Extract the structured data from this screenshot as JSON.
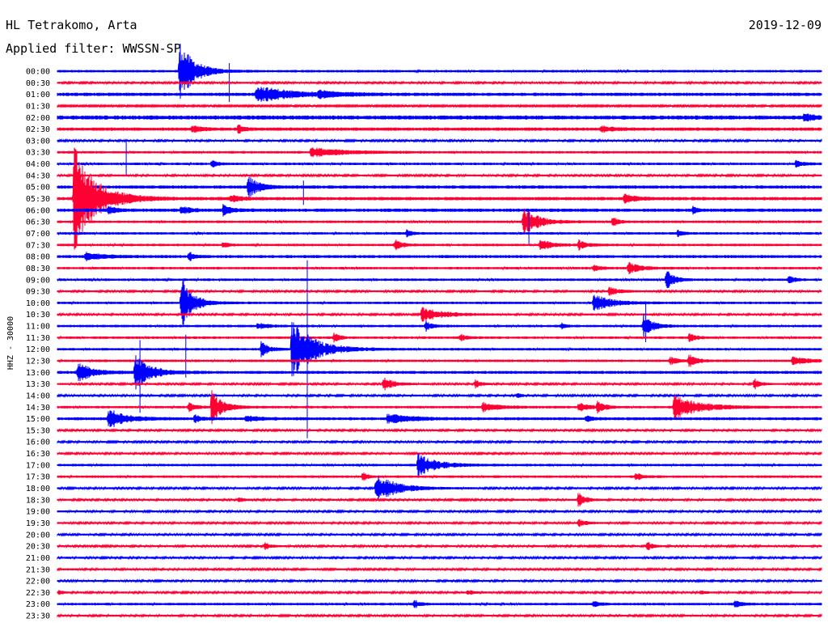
{
  "header": {
    "station": "HL Tetrakomo, Arta",
    "date": "2019-12-09",
    "filter": "Applied filter: WWSSN-SP"
  },
  "colors": {
    "even_trace": "#0000ff",
    "odd_trace": "#ff0033",
    "background": "#ffffff",
    "text": "#000000"
  },
  "chart_data": {
    "type": "line",
    "title": "HL Tetrakomo, Arta",
    "ylabel": "HHZ - 30000",
    "tick_labels": [
      "00:00",
      "00:30",
      "01:00",
      "01:30",
      "02:00",
      "02:30",
      "03:00",
      "03:30",
      "04:00",
      "04:30",
      "05:00",
      "05:30",
      "06:00",
      "06:30",
      "07:00",
      "07:30",
      "08:00",
      "08:30",
      "09:00",
      "09:30",
      "10:00",
      "10:30",
      "11:00",
      "11:30",
      "12:00",
      "12:30",
      "13:00",
      "13:30",
      "14:00",
      "14:30",
      "15:00",
      "15:30",
      "16:00",
      "16:30",
      "17:00",
      "17:30",
      "18:00",
      "18:30",
      "19:00",
      "19:30",
      "20:00",
      "20:30",
      "21:00",
      "21:30",
      "22:00",
      "22:30",
      "23:00",
      "23:30"
    ],
    "noise_levels": [
      1.5,
      1.2,
      2,
      1,
      2.5,
      2,
      1.2,
      1.5,
      1.5,
      1.2,
      2,
      2,
      2,
      1.5,
      1.5,
      1.5,
      1.8,
      1.5,
      1.5,
      1.2,
      1.5,
      1.2,
      1.5,
      1.5,
      1.5,
      1.5,
      1.8,
      1.2,
      1.2,
      1.5,
      1.8,
      1.2,
      1.2,
      1.2,
      1.5,
      1.5,
      1.2,
      1.2,
      1.2,
      1.2,
      1.2,
      1.2,
      1.2,
      1.2,
      1.2,
      1.2,
      1.5,
      1.2
    ],
    "events": [
      {
        "row": 0,
        "x0": 0.158,
        "amp": 42,
        "dur": 0.04
      },
      {
        "row": 2,
        "x0": 0.258,
        "amp": 11,
        "dur": 0.09
      },
      {
        "row": 2,
        "x0": 0.34,
        "amp": 4,
        "dur": 0.06
      },
      {
        "row": 4,
        "x0": 0.975,
        "amp": 6,
        "dur": 0.025
      },
      {
        "row": 5,
        "x0": 0.175,
        "amp": 6,
        "dur": 0.02
      },
      {
        "row": 5,
        "x0": 0.235,
        "amp": 7,
        "dur": 0.015
      },
      {
        "row": 5,
        "x0": 0.71,
        "amp": 4,
        "dur": 0.03
      },
      {
        "row": 7,
        "x0": 0.33,
        "amp": 6,
        "dur": 0.09
      },
      {
        "row": 8,
        "x0": 0.2,
        "amp": 6,
        "dur": 0.015
      },
      {
        "row": 8,
        "x0": 0.965,
        "amp": 6,
        "dur": 0.02
      },
      {
        "row": 10,
        "x0": 0.248,
        "amp": 15,
        "dur": 0.03
      },
      {
        "row": 11,
        "x0": 0.02,
        "amp": 70,
        "dur": 0.06
      },
      {
        "row": 11,
        "x0": 0.225,
        "amp": 5,
        "dur": 0.025
      },
      {
        "row": 11,
        "x0": 0.74,
        "amp": 6,
        "dur": 0.03
      },
      {
        "row": 12,
        "x0": 0.065,
        "amp": 6,
        "dur": 0.02
      },
      {
        "row": 12,
        "x0": 0.16,
        "amp": 8,
        "dur": 0.02
      },
      {
        "row": 12,
        "x0": 0.215,
        "amp": 8,
        "dur": 0.02
      },
      {
        "row": 12,
        "x0": 0.83,
        "amp": 7,
        "dur": 0.01
      },
      {
        "row": 13,
        "x0": 0.608,
        "amp": 20,
        "dur": 0.04
      },
      {
        "row": 13,
        "x0": 0.725,
        "amp": 8,
        "dur": 0.015
      },
      {
        "row": 14,
        "x0": 0.455,
        "amp": 6,
        "dur": 0.015
      },
      {
        "row": 14,
        "x0": 0.81,
        "amp": 5,
        "dur": 0.015
      },
      {
        "row": 15,
        "x0": 0.44,
        "amp": 8,
        "dur": 0.02
      },
      {
        "row": 15,
        "x0": 0.63,
        "amp": 8,
        "dur": 0.03
      },
      {
        "row": 15,
        "x0": 0.68,
        "amp": 7,
        "dur": 0.025
      },
      {
        "row": 15,
        "x0": 0.215,
        "amp": 5,
        "dur": 0.015
      },
      {
        "row": 16,
        "x0": 0.035,
        "amp": 5,
        "dur": 0.05
      },
      {
        "row": 16,
        "x0": 0.17,
        "amp": 8,
        "dur": 0.015
      },
      {
        "row": 17,
        "x0": 0.745,
        "amp": 10,
        "dur": 0.03
      },
      {
        "row": 17,
        "x0": 0.7,
        "amp": 5,
        "dur": 0.02
      },
      {
        "row": 18,
        "x0": 0.795,
        "amp": 16,
        "dur": 0.02
      },
      {
        "row": 18,
        "x0": 0.955,
        "amp": 8,
        "dur": 0.015
      },
      {
        "row": 19,
        "x0": 0.72,
        "amp": 6,
        "dur": 0.03
      },
      {
        "row": 20,
        "x0": 0.16,
        "amp": 40,
        "dur": 0.03
      },
      {
        "row": 20,
        "x0": 0.7,
        "amp": 11,
        "dur": 0.05
      },
      {
        "row": 21,
        "x0": 0.475,
        "amp": 10,
        "dur": 0.06
      },
      {
        "row": 22,
        "x0": 0.48,
        "amp": 9,
        "dur": 0.015
      },
      {
        "row": 22,
        "x0": 0.658,
        "amp": 6,
        "dur": 0.01
      },
      {
        "row": 22,
        "x0": 0.765,
        "amp": 18,
        "dur": 0.025
      },
      {
        "row": 22,
        "x0": 0.26,
        "amp": 4,
        "dur": 0.03
      },
      {
        "row": 23,
        "x0": 0.36,
        "amp": 8,
        "dur": 0.015
      },
      {
        "row": 23,
        "x0": 0.525,
        "amp": 6,
        "dur": 0.015
      },
      {
        "row": 23,
        "x0": 0.825,
        "amp": 8,
        "dur": 0.015
      },
      {
        "row": 24,
        "x0": 0.265,
        "amp": 13,
        "dur": 0.02
      },
      {
        "row": 24,
        "x0": 0.305,
        "amp": 40,
        "dur": 0.06
      },
      {
        "row": 25,
        "x0": 0.8,
        "amp": 6,
        "dur": 0.02
      },
      {
        "row": 25,
        "x0": 0.825,
        "amp": 10,
        "dur": 0.02
      },
      {
        "row": 25,
        "x0": 0.96,
        "amp": 6,
        "dur": 0.04
      },
      {
        "row": 26,
        "x0": 0.025,
        "amp": 14,
        "dur": 0.04
      },
      {
        "row": 26,
        "x0": 0.1,
        "amp": 26,
        "dur": 0.04
      },
      {
        "row": 27,
        "x0": 0.425,
        "amp": 9,
        "dur": 0.03
      },
      {
        "row": 27,
        "x0": 0.545,
        "amp": 7,
        "dur": 0.015
      },
      {
        "row": 27,
        "x0": 0.91,
        "amp": 9,
        "dur": 0.015
      },
      {
        "row": 28,
        "x0": 0.6,
        "amp": 5,
        "dur": 0.01
      },
      {
        "row": 29,
        "x0": 0.2,
        "amp": 24,
        "dur": 0.03
      },
      {
        "row": 29,
        "x0": 0.17,
        "amp": 6,
        "dur": 0.02
      },
      {
        "row": 29,
        "x0": 0.555,
        "amp": 7,
        "dur": 0.04
      },
      {
        "row": 29,
        "x0": 0.68,
        "amp": 6,
        "dur": 0.03
      },
      {
        "row": 29,
        "x0": 0.705,
        "amp": 8,
        "dur": 0.02
      },
      {
        "row": 29,
        "x0": 0.805,
        "amp": 16,
        "dur": 0.07
      },
      {
        "row": 30,
        "x0": 0.065,
        "amp": 14,
        "dur": 0.045
      },
      {
        "row": 30,
        "x0": 0.178,
        "amp": 7,
        "dur": 0.015
      },
      {
        "row": 30,
        "x0": 0.43,
        "amp": 7,
        "dur": 0.06
      },
      {
        "row": 30,
        "x0": 0.245,
        "amp": 4,
        "dur": 0.04
      },
      {
        "row": 30,
        "x0": 0.69,
        "amp": 5,
        "dur": 0.015
      },
      {
        "row": 34,
        "x0": 0.47,
        "amp": 15,
        "dur": 0.05
      },
      {
        "row": 35,
        "x0": 0.398,
        "amp": 8,
        "dur": 0.012
      },
      {
        "row": 35,
        "x0": 0.755,
        "amp": 6,
        "dur": 0.02
      },
      {
        "row": 36,
        "x0": 0.415,
        "amp": 18,
        "dur": 0.06
      },
      {
        "row": 37,
        "x0": 0.68,
        "amp": 12,
        "dur": 0.02
      },
      {
        "row": 37,
        "x0": 0.235,
        "amp": 4,
        "dur": 0.015
      },
      {
        "row": 39,
        "x0": 0.68,
        "amp": 7,
        "dur": 0.02
      },
      {
        "row": 41,
        "x0": 0.27,
        "amp": 6,
        "dur": 0.015
      },
      {
        "row": 41,
        "x0": 0.77,
        "amp": 7,
        "dur": 0.015
      },
      {
        "row": 45,
        "x0": 0.0,
        "amp": 5,
        "dur": 0.01
      },
      {
        "row": 45,
        "x0": 0.535,
        "amp": 4,
        "dur": 0.015
      },
      {
        "row": 45,
        "x0": 0.84,
        "amp": 4,
        "dur": 0.01
      },
      {
        "row": 46,
        "x0": 0.465,
        "amp": 8,
        "dur": 0.015
      },
      {
        "row": 46,
        "x0": 0.7,
        "amp": 5,
        "dur": 0.015
      },
      {
        "row": 46,
        "x0": 0.885,
        "amp": 5,
        "dur": 0.02
      }
    ],
    "spikes": [
      {
        "row": 10,
        "x": 0.322,
        "up": 8,
        "down": 22
      },
      {
        "row": 24,
        "x": 0.168,
        "up": 18,
        "down": 35
      },
      {
        "row": 24,
        "x": 0.327,
        "up": 110,
        "down": 110
      },
      {
        "row": 26,
        "x": 0.108,
        "up": 40,
        "down": 50
      },
      {
        "row": 22,
        "x": 0.77,
        "up": 30,
        "down": 20
      },
      {
        "row": 14,
        "x": 0.617,
        "up": 30,
        "down": 14
      },
      {
        "row": 8,
        "x": 0.09,
        "up": 30,
        "down": 14
      },
      {
        "row": 0,
        "x": 0.225,
        "up": 10,
        "down": 38
      }
    ],
    "grid": false
  }
}
